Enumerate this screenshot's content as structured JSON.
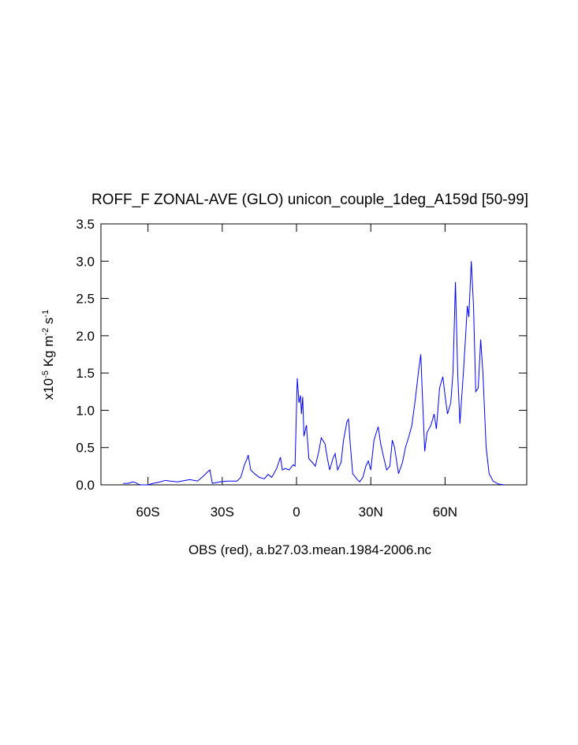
{
  "chart_data": {
    "type": "line",
    "title": "ROFF_F ZONAL-AVE (GLO) unicon_couple_1deg_A159d [50-99]",
    "xlabel": "OBS (red), a.b27.03.mean.1984-2006.nc",
    "ylabel_parts": [
      "x10",
      "-5",
      " Kg m",
      "-2",
      " s",
      "-1"
    ],
    "xlim": [
      -79,
      93
    ],
    "ylim": [
      0,
      3.5
    ],
    "xticks": [
      {
        "value": -60,
        "label": "60S"
      },
      {
        "value": -30,
        "label": "30S"
      },
      0,
      {
        "value": 30,
        "label": "30N"
      },
      {
        "value": 60,
        "label": "60N"
      }
    ],
    "yticks": [
      {
        "value": 0,
        "label": "0.0"
      },
      0.5,
      {
        "value": 1,
        "label": "1.0"
      },
      1.5,
      {
        "value": 2,
        "label": "2.0"
      },
      2.5,
      {
        "value": 3,
        "label": "3.0"
      },
      3.5
    ],
    "x": [
      -70,
      -68,
      -67,
      -66,
      -65,
      -64,
      -63,
      -60,
      -58,
      -55,
      -53,
      -51,
      -48,
      -45,
      -43,
      -40,
      -37.5,
      -36,
      -35,
      -34,
      -31,
      -28,
      -24,
      -22.5,
      -21,
      -20,
      -19.5,
      -18.5,
      -17,
      -15,
      -13,
      -11.5,
      -10,
      -8,
      -6.5,
      -5.7,
      -4.5,
      -3,
      -1.3,
      -0.6,
      0.3,
      1,
      1.6,
      2,
      2.5,
      3,
      4,
      5,
      6.4,
      7.6,
      9,
      10,
      11.5,
      12.5,
      13.4,
      14.7,
      15.6,
      16.6,
      18,
      19,
      20.4,
      21,
      21.7,
      22.7,
      24.3,
      25.5,
      26.8,
      28,
      29,
      30,
      31.3,
      33,
      34,
      35,
      36.4,
      37.7,
      38.7,
      39.6,
      41.2,
      42.8,
      44,
      45.4,
      46.6,
      48,
      49.2,
      50.2,
      51.1,
      51.8,
      52.7,
      54.3,
      55.6,
      56.5,
      57.8,
      59.1,
      60,
      61,
      62.3,
      63.2,
      64.2,
      65.1,
      66,
      67.4,
      68.4,
      69,
      69.6,
      70.6,
      71.5,
      72.4,
      73.4,
      74.4,
      75.3,
      76.6,
      77.8,
      79.4,
      81.6,
      84
    ],
    "series": [
      {
        "name": "ROFF_F",
        "color": "#0000ff",
        "values": [
          0.02,
          0.02,
          0.03,
          0.04,
          0.03,
          0.01,
          0,
          0,
          0.02,
          0.04,
          0.06,
          0.05,
          0.04,
          0.06,
          0.07,
          0.05,
          0.12,
          0.17,
          0.2,
          0.02,
          0.04,
          0.05,
          0.05,
          0.1,
          0.27,
          0.35,
          0.4,
          0.2,
          0.15,
          0.1,
          0.08,
          0.14,
          0.1,
          0.22,
          0.37,
          0.2,
          0.22,
          0.2,
          0.27,
          0.25,
          1.43,
          1.1,
          1.2,
          0.95,
          1.18,
          0.65,
          0.8,
          0.35,
          0.3,
          0.25,
          0.45,
          0.63,
          0.55,
          0.35,
          0.2,
          0.35,
          0.42,
          0.2,
          0.3,
          0.6,
          0.85,
          0.88,
          0.55,
          0.15,
          0.08,
          0.04,
          0.1,
          0.25,
          0.32,
          0.2,
          0.6,
          0.78,
          0.55,
          0.4,
          0.2,
          0.25,
          0.6,
          0.5,
          0.15,
          0.3,
          0.5,
          0.65,
          0.8,
          1.15,
          1.5,
          1.75,
          1.0,
          0.45,
          0.7,
          0.8,
          0.95,
          0.75,
          1.3,
          1.45,
          1.2,
          0.95,
          1.1,
          1.5,
          2.72,
          1.5,
          0.82,
          1.5,
          2.05,
          2.4,
          2.25,
          3.0,
          2.4,
          1.25,
          1.3,
          1.95,
          1.5,
          0.5,
          0.15,
          0.05,
          0.01,
          0
        ]
      }
    ]
  }
}
